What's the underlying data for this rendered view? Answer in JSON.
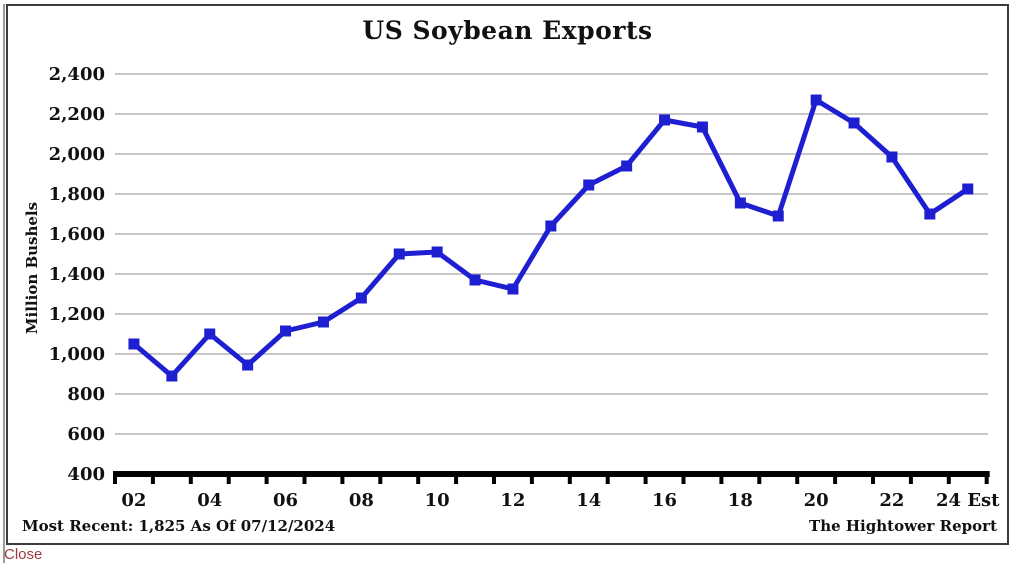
{
  "page": {
    "close_label": "Close"
  },
  "chart": {
    "title": "US Soybean Exports",
    "y_axis_title": "Million Bushels",
    "footer_left": "Most Recent: 1,825 As Of 07/12/2024",
    "footer_right": "The Hightower Report"
  },
  "chart_data": {
    "type": "line",
    "title": "US Soybean Exports",
    "ylabel": "Million Bushels",
    "categories": [
      "02",
      "03",
      "04",
      "05",
      "06",
      "07",
      "08",
      "09",
      "10",
      "11",
      "12",
      "13",
      "14",
      "15",
      "16",
      "17",
      "18",
      "19",
      "20",
      "21",
      "22",
      "23",
      "24 Est"
    ],
    "values": [
      1050,
      890,
      1100,
      945,
      1115,
      1160,
      1280,
      1500,
      1510,
      1370,
      1325,
      1640,
      1845,
      1940,
      2170,
      2135,
      1755,
      1690,
      2270,
      2155,
      1985,
      1700,
      1825
    ],
    "ylim": [
      400,
      2400
    ],
    "y_tick_step": 200,
    "x_label_every": 2,
    "grid": true,
    "legend": "none",
    "most_recent": "1,825",
    "as_of_date": "07/12/2024",
    "line_color": "#1f1fd2",
    "marker": "square",
    "grid_color": "#a8a8a8",
    "axis_color": "#000000"
  }
}
